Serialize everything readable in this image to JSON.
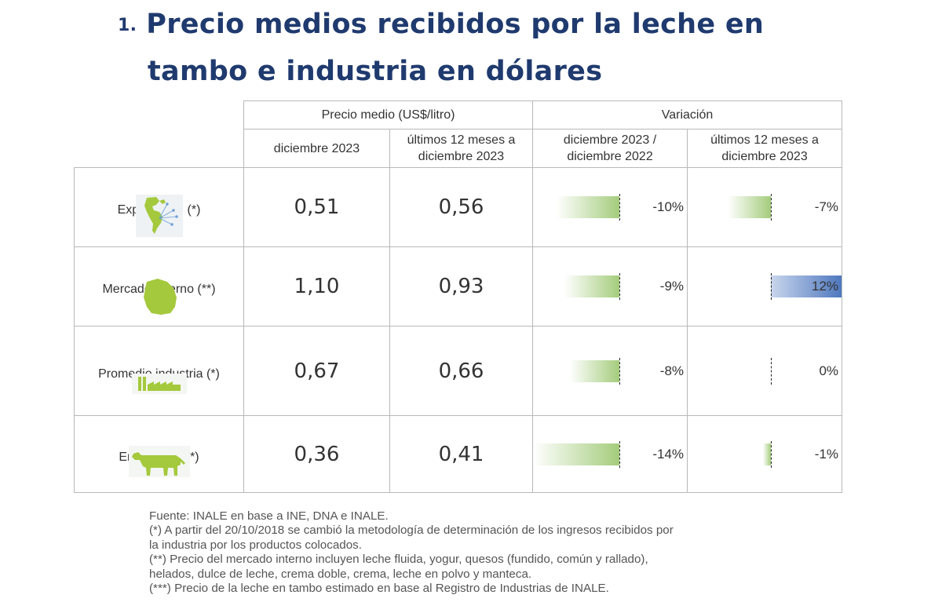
{
  "title": {
    "number": "1.",
    "line1": "Precio medios recibidos por la leche en",
    "line2": "tambo e industria en dólares"
  },
  "table": {
    "group_price": "Precio medio (US$/litro)",
    "group_var": "Variación",
    "col1": "diciembre 2023",
    "col2_a": "últimos 12 meses a",
    "col2_b": "diciembre 2023",
    "col3_a": "diciembre 2023 /",
    "col3_b": "diciembre 2022",
    "col4_a": "últimos 12 meses a",
    "col4_b": "diciembre 2023",
    "rows": [
      {
        "label": "Exportación (*)",
        "icon": "americas-map-icon",
        "price_dec": "0,51",
        "price_12m": "0,56",
        "var_dec": "-10%",
        "var_12m": "-7%"
      },
      {
        "label": "Mercado Interno (**)",
        "icon": "uruguay-map-icon",
        "price_dec": "1,10",
        "price_12m": "0,93",
        "var_dec": "-9%",
        "var_12m": "12%"
      },
      {
        "label": "Promedio industria (*)",
        "icon": "factory-icon",
        "price_dec": "0,67",
        "price_12m": "0,66",
        "var_dec": "-8%",
        "var_12m": "0%"
      },
      {
        "label": "En tambo (***)",
        "icon": "cow-icon",
        "price_dec": "0,36",
        "price_12m": "0,41",
        "var_dec": "-14%",
        "var_12m": "-1%"
      }
    ]
  },
  "colors": {
    "title": "#1f3a6e",
    "value": "#1f6fb4",
    "neg_bar": "#a4cc7c",
    "pos_bar": "#4e78bf",
    "icon": "#a4c93c"
  },
  "notes": [
    "Fuente: INALE en base a INE, DNA e INALE.",
    "(*) A partir del 20/10/2018 se cambió la metodología de determinación de los ingresos recibidos por",
    "la industria por los productos colocados.",
    "(**) Precio del mercado interno incluyen leche fluida, yogur, quesos (fundido, común y rallado),",
    "helados, dulce de leche, crema doble, crema, leche en polvo y manteca.",
    "(***) Precio de la leche en tambo estimado en base al Registro de Industrias de INALE."
  ]
}
